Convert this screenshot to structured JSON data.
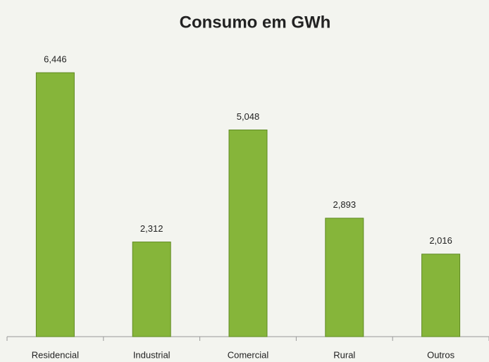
{
  "chart_data": {
    "type": "bar",
    "title": "Consumo em GWh",
    "categories": [
      "Residencial",
      "Industrial",
      "Comercial",
      "Rural",
      "Outros"
    ],
    "values": [
      6446,
      2312,
      5048,
      2893,
      2016
    ],
    "value_labels": [
      "6,446",
      "2,312",
      "5,048",
      "2,893",
      "2,016"
    ],
    "color": "#86b53a",
    "ylim": [
      0,
      7000
    ]
  }
}
